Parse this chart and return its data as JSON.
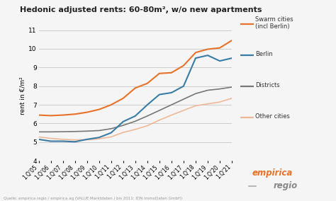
{
  "title": "Hedonic adjusted rents: 60-80m², w/o new apartments",
  "ylabel": "rent in €/m²",
  "source_text": "Quelle: empirica regio / empirica ag (VALUE Marktdaten / bis 2011: IDN ImmoDaten GmbH)",
  "ylim": [
    4,
    11
  ],
  "yticks": [
    4,
    5,
    6,
    7,
    8,
    9,
    10,
    11
  ],
  "background_color": "#f5f5f5",
  "plot_bg_color": "#f5f5f5",
  "grid_color": "#cccccc",
  "x_labels": [
    "1.Q'05",
    "1.Q'06",
    "1.Q'07",
    "1.Q'08",
    "1.Q'09",
    "1.Q'10",
    "1.Q'11",
    "1.Q'12",
    "1.Q'13",
    "1.Q'14",
    "1.Q'15",
    "1.Q'16",
    "1.Q'17",
    "1.Q'18",
    "1.Q'19",
    "1.Q'20",
    "1.Q'21"
  ],
  "swarm_color": "#e8722a",
  "berlin_color": "#3a7ca5",
  "districts_color": "#777777",
  "other_color": "#f0b898",
  "swarm_cities": [
    6.45,
    6.42,
    6.45,
    6.5,
    6.6,
    6.75,
    7.0,
    7.35,
    7.9,
    8.15,
    8.68,
    8.72,
    9.1,
    9.8,
    9.98,
    10.05,
    10.45
  ],
  "berlin": [
    5.15,
    5.05,
    5.05,
    5.02,
    5.15,
    5.25,
    5.5,
    6.1,
    6.4,
    7.0,
    7.55,
    7.65,
    8.0,
    9.5,
    9.65,
    9.35,
    9.5
  ],
  "districts": [
    5.55,
    5.55,
    5.56,
    5.57,
    5.59,
    5.62,
    5.72,
    5.9,
    6.12,
    6.4,
    6.7,
    7.0,
    7.3,
    7.6,
    7.78,
    7.85,
    7.95
  ],
  "other_cities": [
    5.28,
    5.2,
    5.15,
    5.12,
    5.13,
    5.18,
    5.28,
    5.52,
    5.68,
    5.88,
    6.18,
    6.45,
    6.7,
    6.95,
    7.05,
    7.15,
    7.35
  ],
  "legend_labels": [
    "Swarm cities\n(incl Berlin)",
    "Berlin",
    "Districts",
    "Other cities"
  ],
  "legend_colors": [
    "#e8722a",
    "#3a7ca5",
    "#777777",
    "#f0b898"
  ],
  "empirica_color": "#e8722a",
  "regio_color": "#888888"
}
